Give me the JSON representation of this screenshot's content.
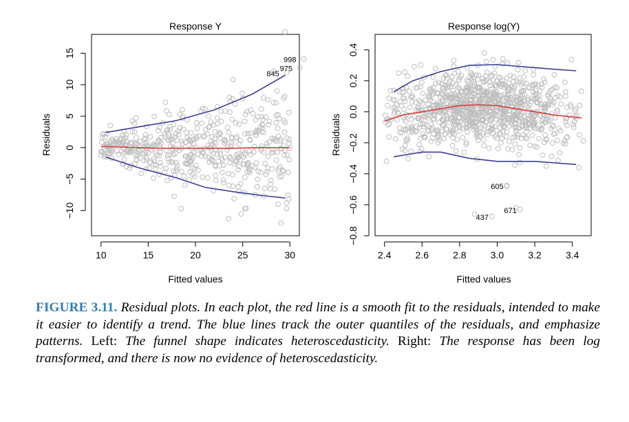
{
  "chart_data": [
    {
      "type": "scatter",
      "title": "Response Y",
      "xlabel": "Fitted values",
      "ylabel": "Residuals",
      "xlim": [
        9,
        31
      ],
      "ylim": [
        -14,
        18
      ],
      "xticks": [
        10,
        15,
        20,
        25,
        30
      ],
      "yticks": [
        -10,
        -5,
        0,
        5,
        10,
        15
      ],
      "grid": false,
      "point_color": "#bdbdbd",
      "series": [
        {
          "kind": "smooth",
          "color": "#dc3c3c",
          "x": [
            10,
            12,
            14,
            16,
            18,
            20,
            22,
            24,
            26,
            28,
            30
          ],
          "y": [
            0.2,
            0.1,
            0.0,
            -0.1,
            -0.1,
            -0.1,
            -0.1,
            -0.1,
            0.0,
            0.0,
            0.0
          ]
        },
        {
          "kind": "upper-quantile",
          "color": "#3c3c96",
          "x": [
            10.5,
            14,
            18,
            22,
            26,
            29.5
          ],
          "y": [
            2.4,
            3.3,
            4.3,
            6.0,
            8.5,
            11.5
          ]
        },
        {
          "kind": "lower-quantile",
          "color": "#3c3c96",
          "x": [
            10.5,
            14,
            18,
            21,
            24,
            27,
            29.5
          ],
          "y": [
            -1.5,
            -3.2,
            -4.8,
            -6.3,
            -7.0,
            -7.6,
            -8.0
          ]
        },
        {
          "kind": "outlier",
          "x": [
            18.5,
            23.5
          ],
          "y": [
            -9.7,
            -11.3
          ]
        }
      ],
      "annotations": [
        {
          "text": "998",
          "x": 30.0,
          "y": 14.0
        },
        {
          "text": "975",
          "x": 29.6,
          "y": 12.6
        },
        {
          "text": "845",
          "x": 28.2,
          "y": 11.8
        }
      ],
      "scatter": {
        "n": 520,
        "x_range": [
          10,
          30
        ],
        "base_sd": 1.0,
        "sd_slope": 0.2,
        "seed": 7
      }
    },
    {
      "type": "scatter",
      "title": "Response log(Y)",
      "xlabel": "Fitted values",
      "ylabel": "Residuals",
      "xlim": [
        2.35,
        3.5
      ],
      "ylim": [
        -0.8,
        0.5
      ],
      "xticks": [
        2.4,
        2.6,
        2.8,
        3.0,
        3.2,
        3.4
      ],
      "xtick_labels": [
        "2.4",
        "2.6",
        "2.8",
        "3.0",
        "3.2",
        "3.4"
      ],
      "yticks": [
        -0.8,
        -0.6,
        -0.4,
        -0.2,
        0.0,
        0.2,
        0.4
      ],
      "ytick_labels": [
        "−0.8",
        "−0.6",
        "−0.4",
        "−0.2",
        "0.0",
        "0.2",
        "0.4"
      ],
      "grid": false,
      "point_color": "#bdbdbd",
      "series": [
        {
          "kind": "smooth",
          "color": "#dc3c3c",
          "x": [
            2.4,
            2.5,
            2.6,
            2.7,
            2.8,
            2.9,
            3.0,
            3.1,
            3.2,
            3.3,
            3.45
          ],
          "y": [
            -0.06,
            -0.02,
            0.0,
            0.02,
            0.04,
            0.045,
            0.04,
            0.02,
            0.0,
            -0.02,
            -0.04
          ]
        },
        {
          "kind": "upper-quantile",
          "color": "#3c3c96",
          "x": [
            2.45,
            2.55,
            2.7,
            2.85,
            3.0,
            3.15,
            3.3,
            3.42
          ],
          "y": [
            0.13,
            0.2,
            0.26,
            0.3,
            0.305,
            0.29,
            0.275,
            0.265
          ]
        },
        {
          "kind": "lower-quantile",
          "color": "#3c3c96",
          "x": [
            2.45,
            2.6,
            2.7,
            2.85,
            3.0,
            3.2,
            3.42
          ],
          "y": [
            -0.29,
            -0.26,
            -0.26,
            -0.3,
            -0.32,
            -0.32,
            -0.34
          ]
        },
        {
          "kind": "outlier",
          "x": [
            2.88,
            3.1,
            3.05
          ],
          "y": [
            -0.66,
            -0.62,
            -0.48
          ]
        }
      ],
      "annotations": [
        {
          "text": "605",
          "x": 3.0,
          "y": -0.48
        },
        {
          "text": "671",
          "x": 3.07,
          "y": -0.635
        },
        {
          "text": "437",
          "x": 2.92,
          "y": -0.68
        }
      ],
      "scatter": {
        "n": 1000,
        "x_range": [
          2.4,
          3.47
        ],
        "base_sd": 0.12,
        "sd_slope": 0.0,
        "seed": 11
      }
    }
  ],
  "caption": {
    "label": "FIGURE 3.11.",
    "text1": " Residual plots. In each plot, the red line is a smooth fit to the residuals, intended to make it easier to identify a trend. The blue lines track the outer quantiles of the residuals, and emphasize patterns. ",
    "left": "Left:",
    "text2": " The funnel shape indicates heteroscedasticity. ",
    "right": "Right:",
    "text3": " The response has been log transformed, and there is now no evidence of heteroscedasticity."
  }
}
